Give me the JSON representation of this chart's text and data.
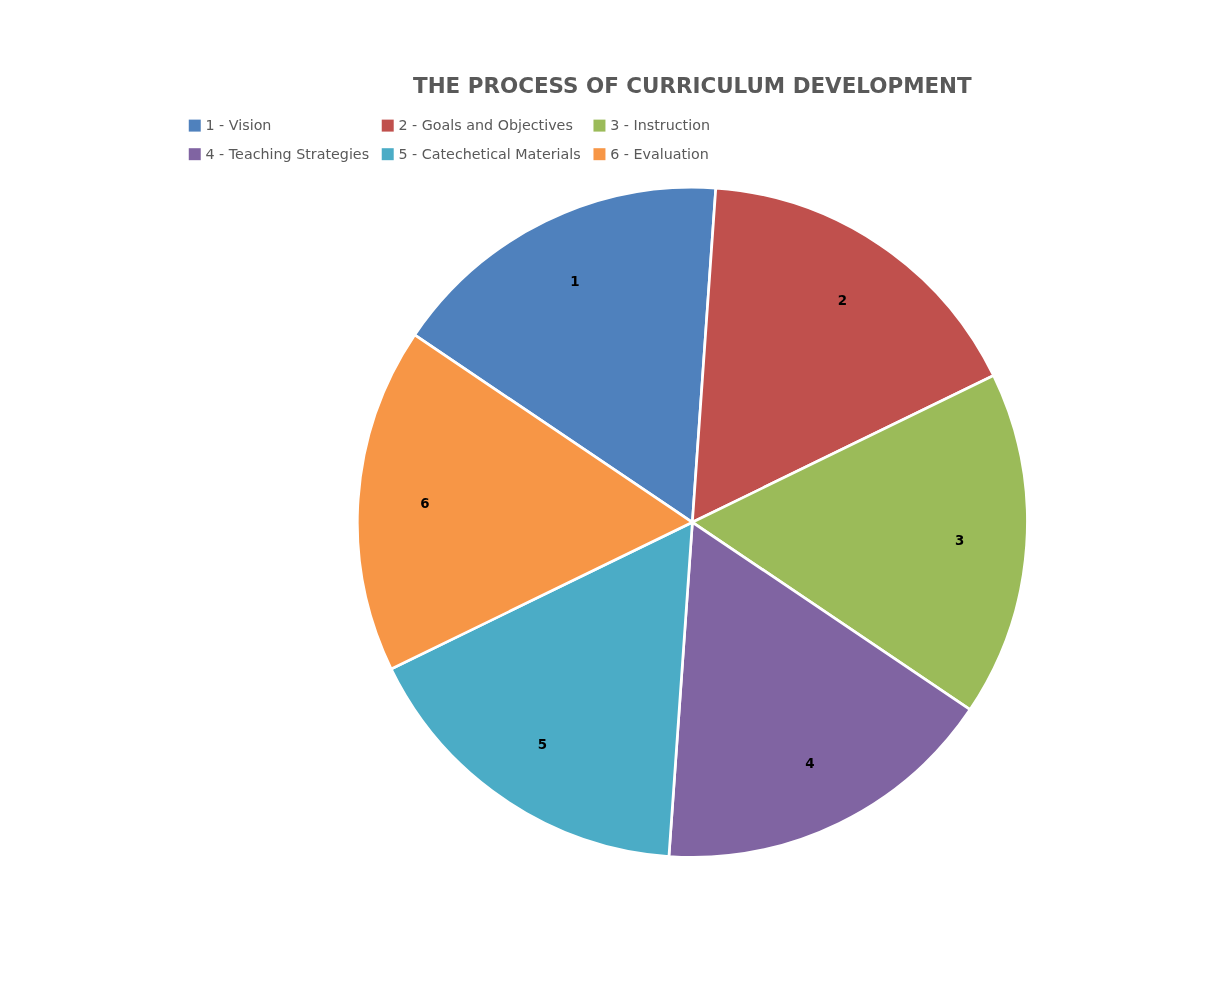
{
  "chart_data": {
    "type": "pie",
    "title": "THE PROCESS OF CURRICULUM DEVELOPMENT",
    "categories": [
      "1 - Vision",
      "2 - Goals and Objectives",
      "3 - Instruction",
      "4 - Teaching Strategies",
      "5 - Catechetical Materials",
      "6 - Evaluation"
    ],
    "values": [
      16.67,
      16.67,
      16.66,
      16.67,
      16.67,
      16.66
    ],
    "colors": [
      "#4f81bd",
      "#c0504d",
      "#9bbb59",
      "#8064a2",
      "#4bacc6",
      "#f79646"
    ],
    "annotations": [
      "1",
      "2",
      "3",
      "4",
      "5",
      "6"
    ],
    "legend": "top"
  }
}
